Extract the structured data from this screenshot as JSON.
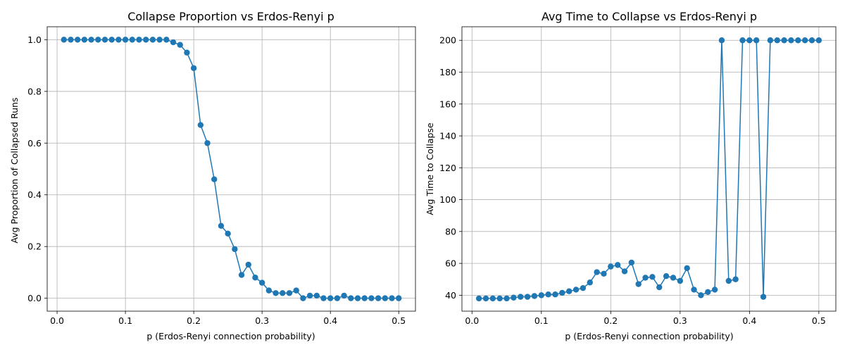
{
  "chart_data": [
    {
      "type": "line",
      "title": "Collapse Proportion vs Erdos-Renyi p",
      "xlabel": "p (Erdos-Renyi connection probability)",
      "ylabel": "Avg Proportion of Collapsed Runs",
      "xlim": [
        -0.0145,
        0.5245
      ],
      "ylim": [
        -0.05,
        1.05
      ],
      "xticks": [
        0.0,
        0.1,
        0.2,
        0.3,
        0.4,
        0.5
      ],
      "xtick_labels": [
        "0.0",
        "0.1",
        "0.2",
        "0.3",
        "0.4",
        "0.5"
      ],
      "yticks": [
        0.0,
        0.2,
        0.4,
        0.6,
        0.8,
        1.0
      ],
      "ytick_labels": [
        "0.0",
        "0.2",
        "0.4",
        "0.6",
        "0.8",
        "1.0"
      ],
      "grid": true,
      "marker": "circle",
      "color": "#1f77b4",
      "x": [
        0.01,
        0.02,
        0.03,
        0.04,
        0.05,
        0.06,
        0.07,
        0.08,
        0.09,
        0.1,
        0.11,
        0.12,
        0.13,
        0.14,
        0.15,
        0.16,
        0.17,
        0.18,
        0.19,
        0.2,
        0.21,
        0.22,
        0.23,
        0.24,
        0.25,
        0.26,
        0.27,
        0.28,
        0.29,
        0.3,
        0.31,
        0.32,
        0.33,
        0.34,
        0.35,
        0.36,
        0.37,
        0.38,
        0.39,
        0.4,
        0.41,
        0.42,
        0.43,
        0.44,
        0.45,
        0.46,
        0.47,
        0.48,
        0.49,
        0.5
      ],
      "y": [
        1.0,
        1.0,
        1.0,
        1.0,
        1.0,
        1.0,
        1.0,
        1.0,
        1.0,
        1.0,
        1.0,
        1.0,
        1.0,
        1.0,
        1.0,
        1.0,
        0.99,
        0.98,
        0.95,
        0.89,
        0.67,
        0.6,
        0.46,
        0.28,
        0.25,
        0.19,
        0.09,
        0.13,
        0.08,
        0.06,
        0.03,
        0.02,
        0.02,
        0.02,
        0.03,
        0.0,
        0.01,
        0.01,
        0.0,
        0.0,
        0.0,
        0.01,
        0.0,
        0.0,
        0.0,
        0.0,
        0.0,
        0.0,
        0.0,
        0.0
      ]
    },
    {
      "type": "line",
      "title": "Avg Time to Collapse vs Erdos-Renyi p",
      "xlabel": "p (Erdos-Renyi connection probability)",
      "ylabel": "Avg Time to Collapse",
      "xlim": [
        -0.0145,
        0.5245
      ],
      "ylim": [
        30.0,
        208.5
      ],
      "xticks": [
        0.0,
        0.1,
        0.2,
        0.3,
        0.4,
        0.5
      ],
      "xtick_labels": [
        "0.0",
        "0.1",
        "0.2",
        "0.3",
        "0.4",
        "0.5"
      ],
      "yticks": [
        40,
        60,
        80,
        100,
        120,
        140,
        160,
        180,
        200
      ],
      "ytick_labels": [
        "40",
        "60",
        "80",
        "100",
        "120",
        "140",
        "160",
        "180",
        "200"
      ],
      "grid": true,
      "marker": "circle",
      "color": "#1f77b4",
      "x": [
        0.01,
        0.02,
        0.03,
        0.04,
        0.05,
        0.06,
        0.07,
        0.08,
        0.09,
        0.1,
        0.11,
        0.12,
        0.13,
        0.14,
        0.15,
        0.16,
        0.17,
        0.18,
        0.19,
        0.2,
        0.21,
        0.22,
        0.23,
        0.24,
        0.25,
        0.26,
        0.27,
        0.28,
        0.29,
        0.3,
        0.31,
        0.32,
        0.33,
        0.34,
        0.35,
        0.36,
        0.37,
        0.38,
        0.39,
        0.4,
        0.41,
        0.42,
        0.43,
        0.44,
        0.45,
        0.46,
        0.47,
        0.48,
        0.49,
        0.5
      ],
      "y": [
        38.0,
        38.0,
        38.0,
        38.0,
        38.0,
        38.5,
        39.0,
        39.0,
        39.5,
        40.0,
        40.5,
        40.5,
        41.5,
        42.5,
        43.5,
        44.5,
        48.0,
        54.5,
        53.5,
        58.0,
        59.0,
        55.0,
        60.5,
        47.0,
        51.0,
        51.5,
        45.0,
        52.0,
        51.0,
        49.0,
        57.0,
        43.5,
        40.0,
        42.0,
        43.5,
        200.0,
        49.0,
        50.0,
        200.0,
        200.0,
        200.0,
        39.0,
        200.0,
        200.0,
        200.0,
        200.0,
        200.0,
        200.0,
        200.0,
        200.0
      ]
    }
  ]
}
